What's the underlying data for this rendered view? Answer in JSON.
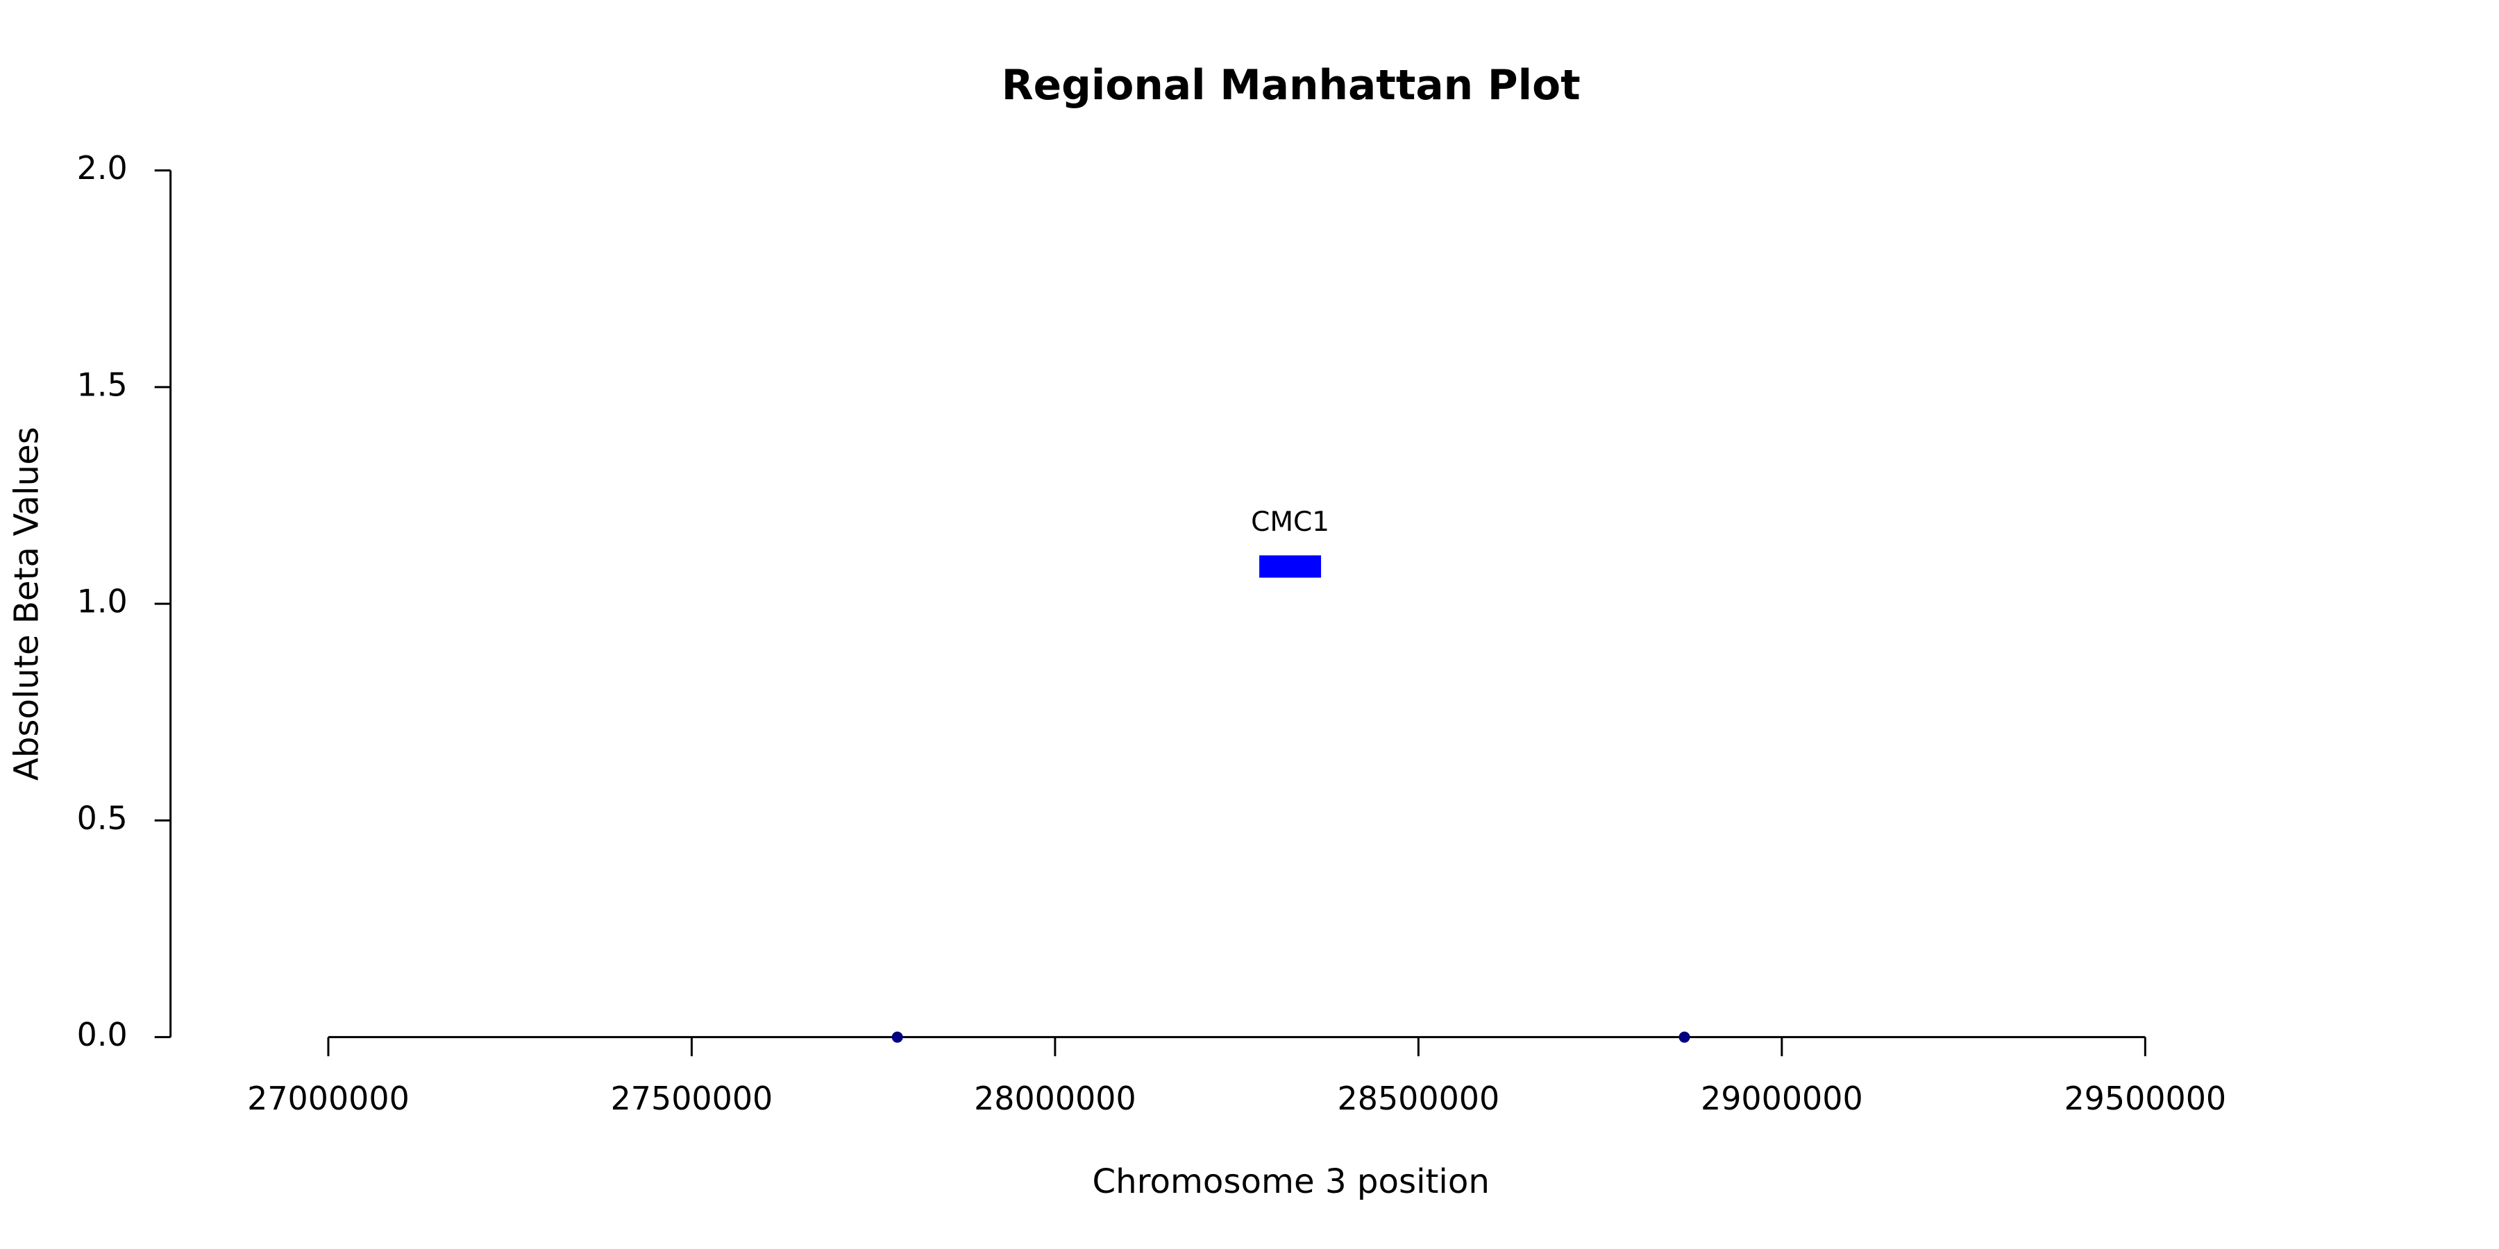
{
  "chart_data": {
    "type": "scatter",
    "title": "Regional Manhattan Plot",
    "x_label": "Chromosome 3 position",
    "y_label": "Absolute Beta Values",
    "series": [
      {
        "color": "#000080",
        "x": [
          27783000,
          28866000
        ],
        "values": [
          0,
          0
        ]
      }
    ],
    "genes": [
      {
        "name": "CMC1",
        "start": 28281000,
        "end": 28366000,
        "y": 1.086,
        "color": "#0000ff"
      }
    ],
    "xlim": [
      27000000,
      29500000
    ],
    "xticks": [
      27000000,
      27500000,
      28000000,
      28500000,
      29000000,
      29500000
    ],
    "ylim": [
      0,
      2
    ],
    "yticks": [
      {
        "value": 0,
        "label": "0.0"
      },
      0.5,
      {
        "value": 1,
        "label": "1.0"
      },
      1.5,
      {
        "value": 2,
        "label": "2.0"
      }
    ]
  }
}
